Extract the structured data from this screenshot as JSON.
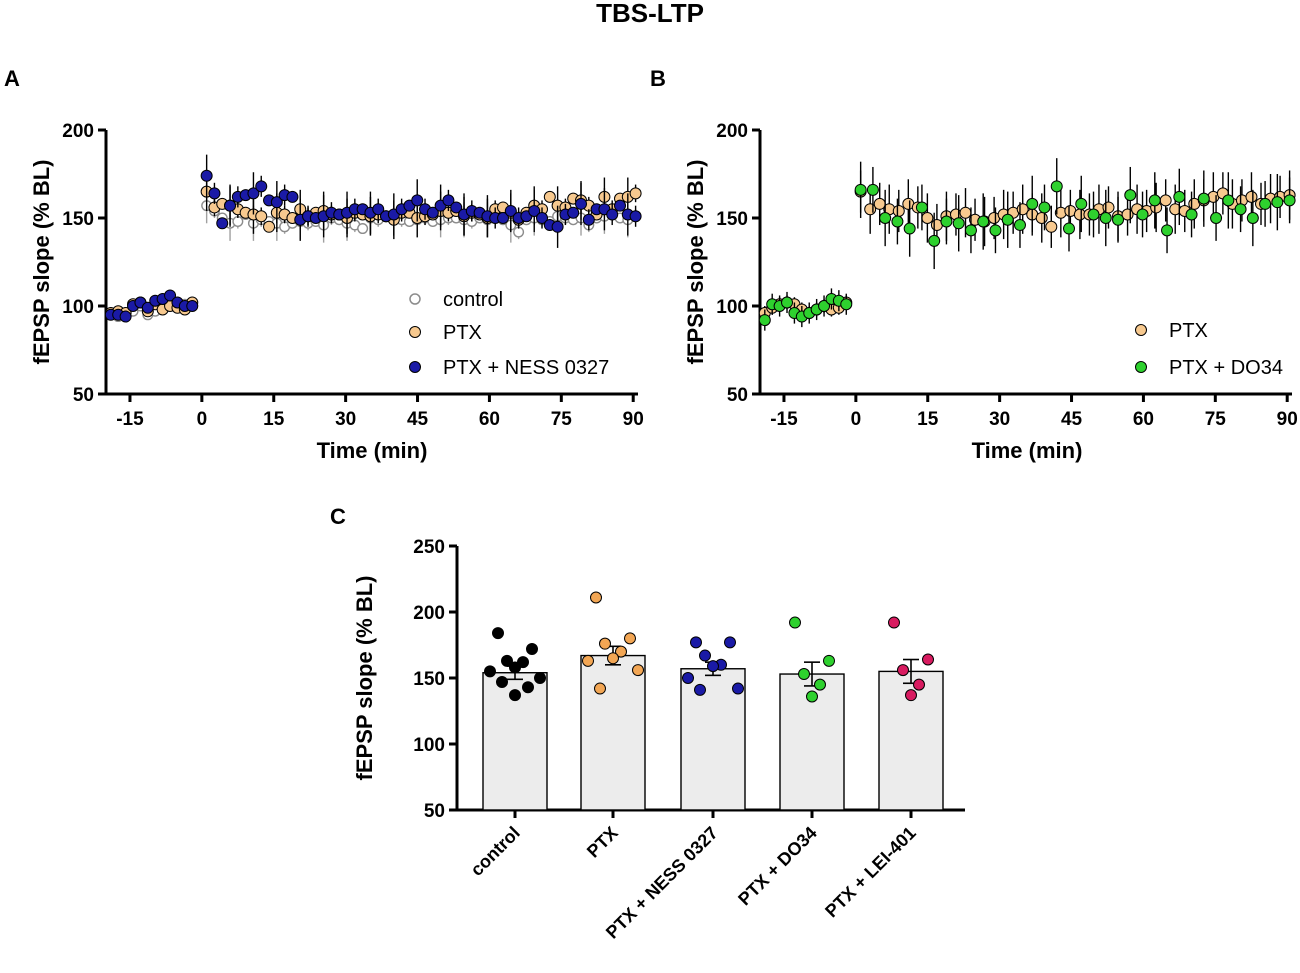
{
  "figure_title": "TBS-LTP",
  "colors": {
    "control": "#ffffff",
    "control_edge": "#8c8c8c",
    "ptx": "#f7c98f",
    "ness": "#1a1aa6",
    "do34": "#2ed12e",
    "lei": "#d81b60",
    "black": "#000000",
    "bar": "#ececec",
    "ptx_dot": "#f2a654"
  },
  "chart_data": [
    {
      "panel": "A",
      "type": "scatter",
      "xlabel": "Time (min)",
      "ylabel": "fEPSP slope (% BL)",
      "xlim": [
        -20,
        91
      ],
      "ylim": [
        50,
        200
      ],
      "xticks": [
        -15,
        0,
        15,
        30,
        45,
        60,
        75,
        90
      ],
      "yticks": [
        50,
        100,
        150,
        200
      ],
      "legend_position": "bottom-right",
      "series": [
        {
          "name": "control",
          "key": "control",
          "baseline": [
            96,
            94,
            94,
            97,
            100,
            95,
            97,
            99,
            102,
            100,
            101,
            100
          ],
          "post": [
            157,
            154,
            150,
            147,
            148,
            152,
            147,
            149,
            148,
            147,
            145,
            147,
            148,
            147,
            148,
            146,
            150,
            149,
            147,
            146,
            144,
            150,
            149,
            151,
            150,
            149,
            148,
            149,
            150,
            148,
            149,
            150,
            150,
            149,
            148,
            150,
            149,
            150,
            149,
            146,
            142,
            149,
            150,
            149,
            148,
            151,
            150,
            149,
            150,
            146,
            150,
            151,
            152,
            150,
            149,
            151
          ],
          "err": [
            2,
            10,
            4,
            3
          ]
        },
        {
          "name": "PTX",
          "key": "ptx",
          "baseline": [
            96,
            97,
            96,
            101,
            102,
            97,
            101,
            98,
            100,
            99,
            98,
            102
          ],
          "post": [
            165,
            156,
            158,
            157,
            155,
            153,
            152,
            151,
            145,
            153,
            152,
            150,
            155,
            151,
            153,
            154,
            152,
            152,
            150,
            153,
            152,
            151,
            152,
            151,
            149,
            153,
            153,
            150,
            151,
            152,
            154,
            153,
            154,
            151,
            153,
            152,
            150,
            155,
            156,
            153,
            149,
            153,
            157,
            155,
            162,
            157,
            156,
            161,
            160,
            157,
            152,
            162,
            155,
            161,
            162,
            164
          ],
          "err": [
            3,
            11,
            5,
            3
          ]
        },
        {
          "name": "PTX + NESS 0327",
          "key": "ness",
          "baseline": [
            95,
            95,
            94,
            100,
            102,
            99,
            103,
            104,
            106,
            102,
            100,
            100
          ],
          "post": [
            174,
            164,
            147,
            157,
            162,
            163,
            164,
            168,
            160,
            159,
            163,
            162,
            149,
            151,
            150,
            151,
            153,
            152,
            153,
            155,
            155,
            153,
            155,
            151,
            152,
            155,
            157,
            160,
            155,
            153,
            157,
            160,
            156,
            152,
            154,
            153,
            151,
            150,
            150,
            154,
            150,
            151,
            154,
            150,
            146,
            145,
            152,
            153,
            158,
            149,
            155,
            155,
            152,
            157,
            152,
            151
          ],
          "err": [
            3,
            12,
            6,
            3
          ]
        }
      ]
    },
    {
      "panel": "B",
      "type": "scatter",
      "xlabel": "Time (min)",
      "ylabel": "fEPSP slope (% BL)",
      "xlim": [
        -20,
        91
      ],
      "ylim": [
        50,
        200
      ],
      "xticks": [
        -15,
        0,
        15,
        30,
        45,
        60,
        75,
        90
      ],
      "yticks": [
        50,
        100,
        150,
        200
      ],
      "legend_position": "bottom-right",
      "series": [
        {
          "name": "PTX",
          "key": "ptx",
          "baseline": [
            96,
            99,
            101,
            102,
            101,
            98,
            96,
            98,
            100,
            98,
            99,
            102
          ],
          "post": [
            165,
            155,
            158,
            155,
            154,
            158,
            156,
            150,
            146,
            151,
            152,
            153,
            149,
            148,
            150,
            152,
            153,
            155,
            152,
            150,
            145,
            153,
            154,
            152,
            152,
            155,
            156,
            151,
            152,
            155,
            154,
            156,
            160,
            155,
            154,
            158,
            160,
            162,
            164,
            158,
            160,
            162,
            158,
            161,
            162,
            163
          ],
          "err": [
            4,
            12,
            14
          ]
        },
        {
          "name": "PTX + DO34",
          "key": "do34",
          "baseline": [
            92,
            101,
            100,
            102,
            96,
            94,
            96,
            98,
            100,
            104,
            103,
            101
          ],
          "post": [
            166,
            166,
            150,
            148,
            144,
            156,
            137,
            148,
            147,
            143,
            148,
            143,
            149,
            146,
            158,
            156,
            168,
            144,
            158,
            152,
            150,
            149,
            163,
            152,
            160,
            143,
            162,
            152,
            161,
            150,
            160,
            155,
            150,
            158,
            159,
            160
          ],
          "err": [
            6,
            13,
            16
          ]
        }
      ]
    },
    {
      "panel": "C",
      "type": "bar",
      "ylabel": "fEPSP slope (% BL)",
      "ylim": [
        50,
        250
      ],
      "yticks": [
        50,
        100,
        150,
        200,
        250
      ],
      "categories": [
        "control",
        "PTX",
        "PTX + NESS 0327",
        "PTX + DO34",
        "PTX + LEI-401"
      ],
      "values": [
        154,
        167,
        157,
        153,
        155
      ],
      "sem": [
        5,
        7,
        5,
        9,
        9
      ],
      "dot_keys": [
        "black",
        "ptx_dot",
        "ness",
        "do34",
        "lei"
      ],
      "points": [
        [
          184,
          172,
          163,
          162,
          158,
          155,
          150,
          147,
          143,
          137
        ],
        [
          211,
          180,
          176,
          170,
          165,
          163,
          156,
          142
        ],
        [
          177,
          177,
          167,
          160,
          159,
          150,
          142,
          141
        ],
        [
          192,
          163,
          153,
          145,
          136
        ],
        [
          192,
          164,
          156,
          145,
          137
        ]
      ]
    }
  ]
}
